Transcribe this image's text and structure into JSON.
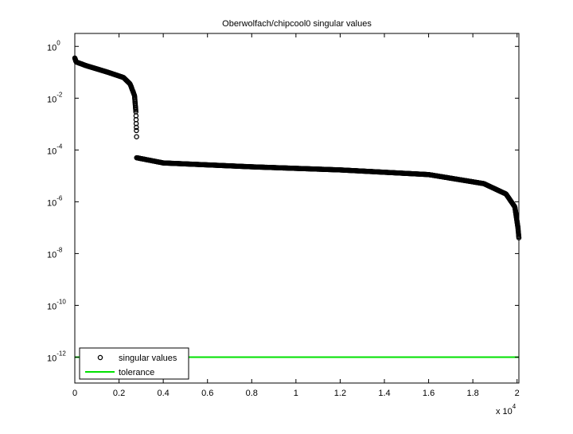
{
  "chart_data": {
    "type": "scatter",
    "title": "Oberwolfach/chipcool0 singular values",
    "xlabel": "",
    "ylabel": "",
    "x_multiplier_label": "x 10",
    "x_multiplier_exp": "4",
    "xlim": [
      0,
      20082
    ],
    "ylim_log10": [
      -13,
      0.5
    ],
    "yscale": "log",
    "grid": false,
    "x_ticks": [
      0,
      2000,
      4000,
      6000,
      8000,
      10000,
      12000,
      14000,
      16000,
      18000,
      20000
    ],
    "x_tick_labels": [
      "0",
      "0.2",
      "0.4",
      "0.6",
      "0.8",
      "1",
      "1.2",
      "1.4",
      "1.6",
      "1.8",
      "2"
    ],
    "y_ticks_log10": [
      0,
      -2,
      -4,
      -6,
      -8,
      -10,
      -12
    ],
    "y_tick_base": "10",
    "y_tick_exps": [
      "0",
      "-2",
      "-4",
      "-6",
      "-8",
      "-10",
      "-12"
    ],
    "legend_position": "bottom-left",
    "series": [
      {
        "name": "singular values",
        "marker": "open-circle",
        "color": "#000000",
        "index_log10_keypoints": [
          [
            1,
            -0.45
          ],
          [
            60,
            -0.6
          ],
          [
            500,
            -0.74
          ],
          [
            1500,
            -1.0
          ],
          [
            2200,
            -1.2
          ],
          [
            2500,
            -1.45
          ],
          [
            2700,
            -1.9
          ],
          [
            2760,
            -2.5
          ],
          [
            2780,
            -3.1
          ],
          [
            2786,
            -3.25
          ],
          [
            2790,
            -3.45
          ],
          [
            2795,
            -3.65
          ],
          [
            2796,
            -4.3
          ],
          [
            4000,
            -4.5
          ],
          [
            8000,
            -4.65
          ],
          [
            12000,
            -4.77
          ],
          [
            16000,
            -4.95
          ],
          [
            18500,
            -5.3
          ],
          [
            19500,
            -5.7
          ],
          [
            19900,
            -6.2
          ],
          [
            20040,
            -7.0
          ],
          [
            20082,
            -7.4
          ]
        ]
      },
      {
        "name": "tolerance",
        "marker": "line",
        "color": "#00e000",
        "value": 1e-12
      }
    ]
  }
}
